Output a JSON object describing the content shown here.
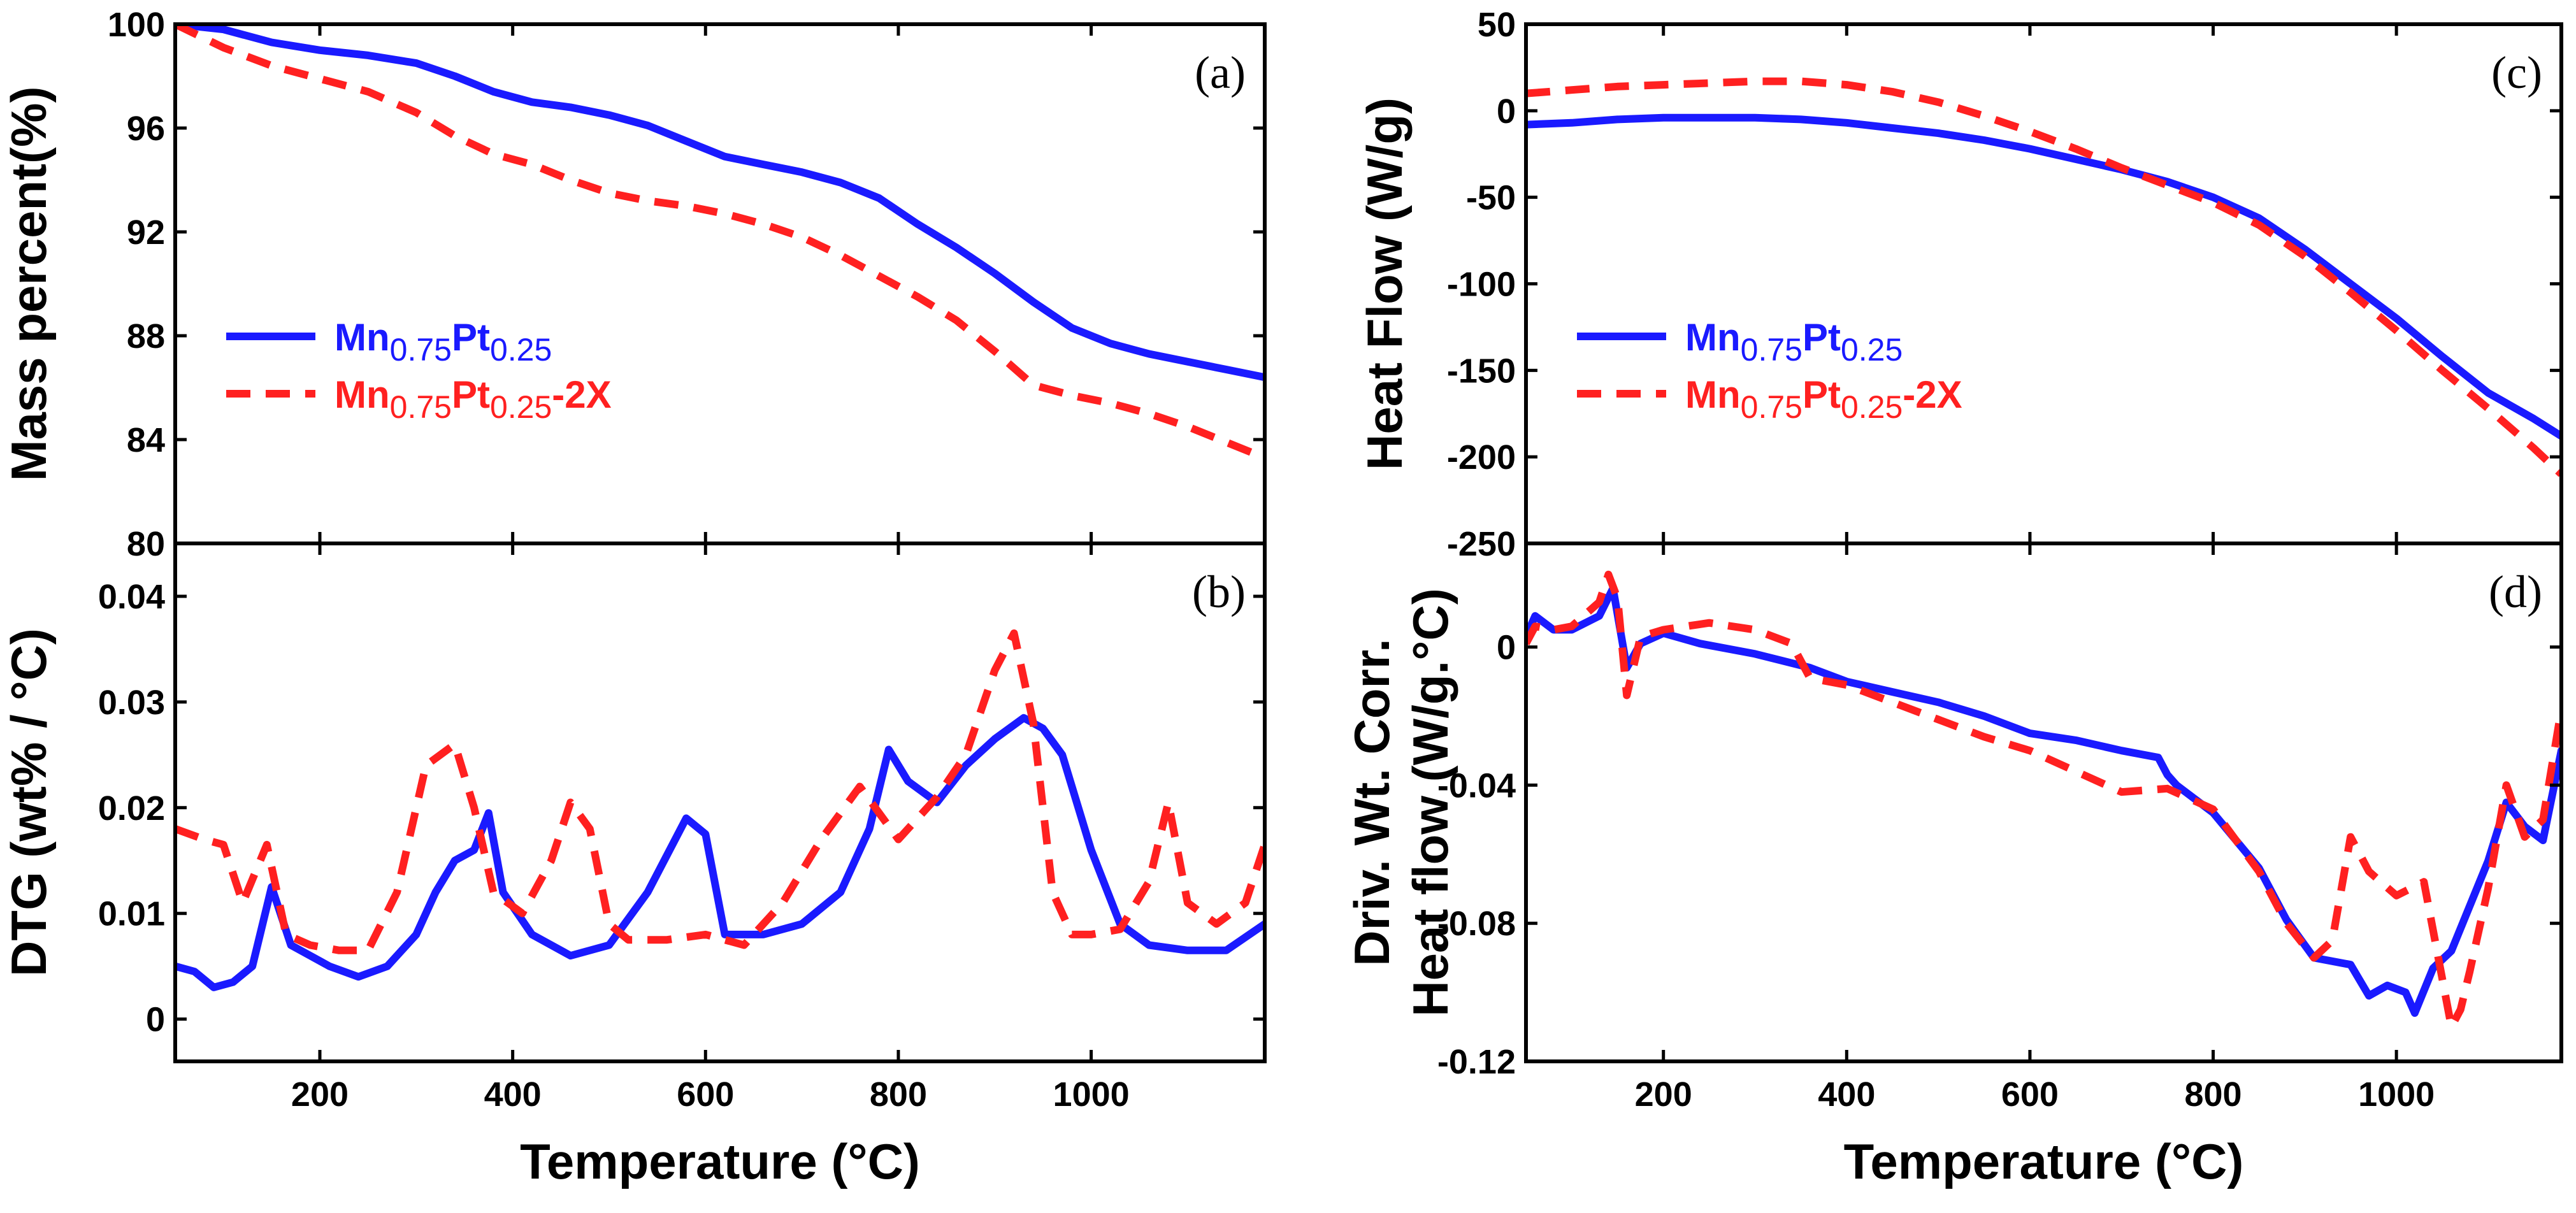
{
  "colors": {
    "blue": "#1a1aff",
    "red": "#ff2020",
    "axis": "#000000"
  },
  "legend": {
    "blue": {
      "base": "Mn",
      "sub1": "0.75",
      "mid": "Pt",
      "sub2": "0.25",
      "suffix": ""
    },
    "red": {
      "base": "Mn",
      "sub1": "0.75",
      "mid": "Pt",
      "sub2": "0.25",
      "suffix": "-2X"
    }
  },
  "chart_data": [
    {
      "id": "a",
      "type": "line",
      "panel_label": "(a)",
      "ylabel": "Mass percent(%)",
      "xlabel": "",
      "xlim": [
        50,
        1180
      ],
      "ylim": [
        80,
        100
      ],
      "xticks": [
        200,
        400,
        600,
        800,
        1000
      ],
      "xtick_labels": [],
      "yticks": [
        80,
        84,
        88,
        92,
        96,
        100
      ],
      "ytick_labels": [
        "80",
        "84",
        "88",
        "92",
        "96",
        "100"
      ],
      "legend_position": "left-middle",
      "series": [
        {
          "name": "Mn0.75Pt0.25",
          "color": "blue",
          "dash": "solid",
          "x": [
            50,
            100,
            150,
            200,
            250,
            300,
            340,
            380,
            420,
            460,
            500,
            540,
            580,
            620,
            660,
            700,
            740,
            780,
            820,
            860,
            900,
            940,
            980,
            1020,
            1060,
            1100,
            1140,
            1180
          ],
          "y": [
            100,
            99.8,
            99.3,
            99.0,
            98.8,
            98.5,
            98.0,
            97.4,
            97.0,
            96.8,
            96.5,
            96.1,
            95.5,
            94.9,
            94.6,
            94.3,
            93.9,
            93.3,
            92.3,
            91.4,
            90.4,
            89.3,
            88.3,
            87.7,
            87.3,
            87.0,
            86.7,
            86.4
          ]
        },
        {
          "name": "Mn0.75Pt0.25-2X",
          "color": "red",
          "dash": "dashed",
          "x": [
            50,
            100,
            150,
            200,
            250,
            300,
            340,
            380,
            420,
            460,
            500,
            540,
            580,
            620,
            660,
            700,
            740,
            780,
            820,
            860,
            900,
            940,
            980,
            1020,
            1060,
            1100,
            1140,
            1180
          ],
          "y": [
            100,
            99.1,
            98.4,
            97.9,
            97.4,
            96.6,
            95.7,
            95.0,
            94.6,
            94.0,
            93.5,
            93.2,
            93.0,
            92.7,
            92.3,
            91.8,
            91.1,
            90.3,
            89.5,
            88.6,
            87.4,
            86.1,
            85.7,
            85.4,
            85.0,
            84.5,
            83.9,
            83.3
          ]
        }
      ]
    },
    {
      "id": "b",
      "type": "line",
      "panel_label": "(b)",
      "ylabel": "DTG (wt% / °C)",
      "xlabel": "Temperature (°C)",
      "xlim": [
        50,
        1180
      ],
      "ylim": [
        -0.004,
        0.045
      ],
      "xticks": [
        200,
        400,
        600,
        800,
        1000
      ],
      "xtick_labels": [
        "200",
        "400",
        "600",
        "800",
        "1000"
      ],
      "yticks": [
        0,
        0.01,
        0.02,
        0.03,
        0.04
      ],
      "ytick_labels": [
        "0",
        "0.01",
        "0.02",
        "0.03",
        "0.04"
      ],
      "series": [
        {
          "name": "Mn0.75Pt0.25",
          "color": "blue",
          "dash": "solid",
          "x": [
            50,
            70,
            90,
            110,
            130,
            150,
            170,
            190,
            210,
            240,
            270,
            300,
            320,
            340,
            360,
            375,
            390,
            420,
            460,
            500,
            540,
            580,
            600,
            620,
            660,
            700,
            740,
            770,
            790,
            810,
            840,
            870,
            900,
            930,
            950,
            970,
            1000,
            1030,
            1060,
            1100,
            1140,
            1180
          ],
          "y": [
            0.005,
            0.0045,
            0.003,
            0.0035,
            0.005,
            0.0125,
            0.007,
            0.006,
            0.005,
            0.004,
            0.005,
            0.008,
            0.012,
            0.015,
            0.016,
            0.0195,
            0.012,
            0.008,
            0.006,
            0.007,
            0.012,
            0.019,
            0.0175,
            0.008,
            0.008,
            0.009,
            0.012,
            0.018,
            0.0255,
            0.0225,
            0.0205,
            0.024,
            0.0265,
            0.0285,
            0.0275,
            0.025,
            0.016,
            0.009,
            0.007,
            0.0065,
            0.0065,
            0.009
          ]
        },
        {
          "name": "Mn0.75Pt0.25-2X",
          "color": "red",
          "dash": "dashed",
          "x": [
            50,
            80,
            100,
            120,
            145,
            165,
            190,
            220,
            250,
            280,
            310,
            340,
            360,
            380,
            410,
            440,
            460,
            480,
            500,
            520,
            560,
            600,
            640,
            680,
            720,
            760,
            800,
            840,
            870,
            900,
            920,
            940,
            960,
            980,
            1000,
            1030,
            1060,
            1080,
            1100,
            1130,
            1160,
            1180
          ],
          "y": [
            0.018,
            0.017,
            0.0165,
            0.011,
            0.0165,
            0.008,
            0.007,
            0.0065,
            0.0065,
            0.012,
            0.024,
            0.026,
            0.02,
            0.012,
            0.01,
            0.015,
            0.0205,
            0.018,
            0.009,
            0.0075,
            0.0075,
            0.008,
            0.007,
            0.011,
            0.017,
            0.022,
            0.017,
            0.021,
            0.025,
            0.033,
            0.0365,
            0.028,
            0.012,
            0.008,
            0.008,
            0.0085,
            0.013,
            0.0205,
            0.011,
            0.009,
            0.011,
            0.0165
          ]
        }
      ]
    },
    {
      "id": "c",
      "type": "line",
      "panel_label": "(c)",
      "ylabel": "Heat Flow (W/g)",
      "xlabel": "",
      "xlim": [
        50,
        1180
      ],
      "ylim": [
        -250,
        50
      ],
      "xticks": [
        200,
        400,
        600,
        800,
        1000
      ],
      "xtick_labels": [],
      "yticks": [
        -250,
        -200,
        -150,
        -100,
        -50,
        0,
        50
      ],
      "ytick_labels": [
        "-250",
        "-200",
        "-150",
        "-100",
        "-50",
        "0",
        "50"
      ],
      "legend_position": "left-middle",
      "series": [
        {
          "name": "Mn0.75Pt0.25",
          "color": "blue",
          "dash": "solid",
          "x": [
            50,
            100,
            150,
            200,
            250,
            300,
            350,
            400,
            450,
            500,
            550,
            600,
            650,
            700,
            750,
            800,
            850,
            900,
            950,
            1000,
            1050,
            1100,
            1150,
            1180
          ],
          "y": [
            -8,
            -7,
            -5,
            -4,
            -4,
            -4,
            -5,
            -7,
            -10,
            -13,
            -17,
            -22,
            -28,
            -34,
            -41,
            -50,
            -62,
            -80,
            -100,
            -120,
            -142,
            -163,
            -178,
            -188
          ]
        },
        {
          "name": "Mn0.75Pt0.25-2X",
          "color": "red",
          "dash": "dashed",
          "x": [
            50,
            100,
            150,
            200,
            250,
            300,
            350,
            400,
            450,
            500,
            550,
            600,
            650,
            700,
            750,
            800,
            850,
            900,
            950,
            1000,
            1050,
            1100,
            1150,
            1180
          ],
          "y": [
            10,
            12,
            14,
            15,
            16,
            17,
            17,
            15,
            11,
            5,
            -3,
            -12,
            -22,
            -33,
            -43,
            -53,
            -66,
            -84,
            -105,
            -127,
            -150,
            -172,
            -195,
            -210
          ]
        }
      ]
    },
    {
      "id": "d",
      "type": "line",
      "panel_label": "(d)",
      "ylabel": "Driv. Wt. Corr. Heat flow (W/g.°C)",
      "xlabel": "Temperature (°C)",
      "xlim": [
        50,
        1180
      ],
      "ylim": [
        -0.12,
        0.03
      ],
      "xticks": [
        200,
        400,
        600,
        800,
        1000
      ],
      "xtick_labels": [
        "200",
        "400",
        "600",
        "800",
        "1000"
      ],
      "yticks": [
        -0.12,
        -0.08,
        -0.04,
        0
      ],
      "ytick_labels": [
        "-0.12",
        "-0.08",
        "-0.04",
        "0"
      ],
      "series": [
        {
          "name": "Mn0.75Pt0.25",
          "color": "blue",
          "dash": "solid",
          "x": [
            50,
            60,
            80,
            100,
            130,
            145,
            160,
            175,
            200,
            240,
            300,
            360,
            400,
            450,
            500,
            550,
            600,
            650,
            700,
            740,
            750,
            760,
            800,
            850,
            880,
            910,
            950,
            970,
            990,
            1010,
            1020,
            1040,
            1060,
            1080,
            1100,
            1120,
            1140,
            1160,
            1180
          ],
          "y": [
            0.003,
            0.009,
            0.005,
            0.005,
            0.009,
            0.017,
            -0.006,
            0.001,
            0.004,
            0.001,
            -0.002,
            -0.006,
            -0.01,
            -0.013,
            -0.016,
            -0.02,
            -0.025,
            -0.027,
            -0.03,
            -0.032,
            -0.037,
            -0.04,
            -0.048,
            -0.064,
            -0.079,
            -0.09,
            -0.092,
            -0.101,
            -0.098,
            -0.1,
            -0.106,
            -0.093,
            -0.088,
            -0.075,
            -0.062,
            -0.045,
            -0.052,
            -0.056,
            -0.03
          ]
        },
        {
          "name": "Mn0.75Pt0.25-2X",
          "color": "red",
          "dash": "dashed",
          "x": [
            50,
            60,
            80,
            100,
            130,
            140,
            150,
            160,
            175,
            200,
            250,
            300,
            340,
            360,
            400,
            450,
            500,
            550,
            600,
            650,
            700,
            750,
            800,
            850,
            880,
            910,
            930,
            950,
            970,
            1000,
            1030,
            1060,
            1070,
            1080,
            1100,
            1120,
            1140,
            1160,
            1180
          ],
          "y": [
            0.001,
            0.006,
            0.005,
            0.006,
            0.013,
            0.021,
            0.014,
            -0.014,
            0.003,
            0.005,
            0.007,
            0.005,
            0.001,
            -0.009,
            -0.011,
            -0.016,
            -0.021,
            -0.026,
            -0.03,
            -0.036,
            -0.042,
            -0.041,
            -0.047,
            -0.065,
            -0.08,
            -0.09,
            -0.085,
            -0.055,
            -0.065,
            -0.072,
            -0.068,
            -0.11,
            -0.105,
            -0.094,
            -0.07,
            -0.04,
            -0.055,
            -0.05,
            -0.018
          ]
        }
      ]
    }
  ]
}
